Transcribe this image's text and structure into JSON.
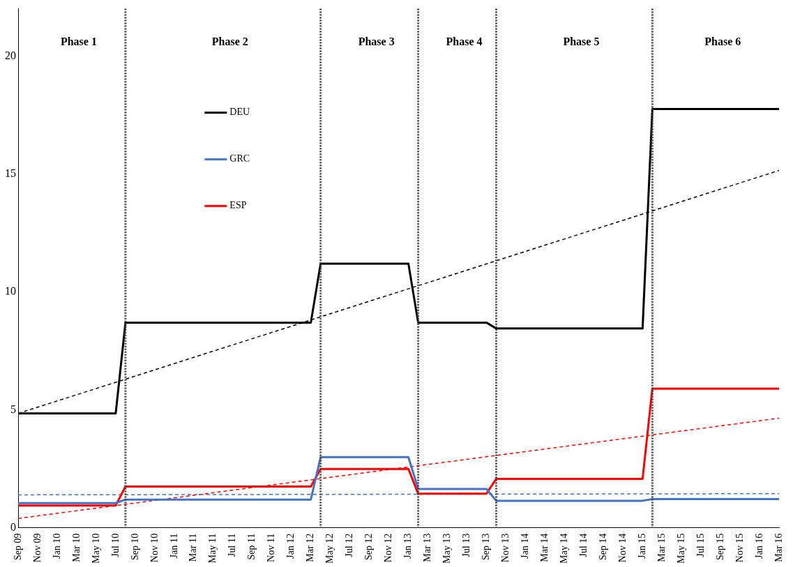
{
  "chart_data": {
    "type": "line",
    "legend": "top left",
    "marker": "none",
    "xlim": [
      "2009-09",
      "2016-03"
    ],
    "ylim": [
      0,
      22
    ],
    "yticks": [
      0,
      5,
      10,
      15,
      20
    ],
    "xticks": [
      {
        "value": "2009-09",
        "label": "Sep 09"
      },
      {
        "value": "2009-11",
        "label": "Nov 09"
      },
      {
        "value": "2010-01",
        "label": "Jan 10"
      },
      {
        "value": "2010-03",
        "label": "Mar 10"
      },
      {
        "value": "2010-05",
        "label": "May 10"
      },
      {
        "value": "2010-07",
        "label": "Jul 10"
      },
      {
        "value": "2010-09",
        "label": "Sep 10"
      },
      {
        "value": "2010-11",
        "label": "Nov 10"
      },
      {
        "value": "2011-01",
        "label": "Jan 11"
      },
      {
        "value": "2011-03",
        "label": "Mar 11"
      },
      {
        "value": "2011-05",
        "label": "May 11"
      },
      {
        "value": "2011-07",
        "label": "Jul 11"
      },
      {
        "value": "2011-09",
        "label": "Sep 11"
      },
      {
        "value": "2011-11",
        "label": "Nov 11"
      },
      {
        "value": "2012-01",
        "label": "Jan 12"
      },
      {
        "value": "2012-03",
        "label": "Mar 12"
      },
      {
        "value": "2012-05",
        "label": "May 12"
      },
      {
        "value": "2012-07",
        "label": "Jul 12"
      },
      {
        "value": "2012-09",
        "label": "Sep 12"
      },
      {
        "value": "2012-11",
        "label": "Nov 12"
      },
      {
        "value": "2013-01",
        "label": "Jan 13"
      },
      {
        "value": "2013-03",
        "label": "Mar 13"
      },
      {
        "value": "2013-05",
        "label": "May 13"
      },
      {
        "value": "2013-07",
        "label": "Jul 13"
      },
      {
        "value": "2013-09",
        "label": "Sep 13"
      },
      {
        "value": "2013-11",
        "label": "Nov 13"
      },
      {
        "value": "2014-01",
        "label": "Jan 14"
      },
      {
        "value": "2014-03",
        "label": "Mar 14"
      },
      {
        "value": "2014-05",
        "label": "May 14"
      },
      {
        "value": "2014-07",
        "label": "Jul 14"
      },
      {
        "value": "2014-09",
        "label": "Sep 14"
      },
      {
        "value": "2014-11",
        "label": "Nov 14"
      },
      {
        "value": "2015-01",
        "label": "Jan 15"
      },
      {
        "value": "2015-03",
        "label": "Mar 15"
      },
      {
        "value": "2015-05",
        "label": "May 15"
      },
      {
        "value": "2015-07",
        "label": "Jul 15"
      },
      {
        "value": "2015-09",
        "label": "Sep 15"
      },
      {
        "value": "2015-11",
        "label": "Nov 15"
      },
      {
        "value": "2016-01",
        "label": "Jan 16"
      },
      {
        "value": "2016-03",
        "label": "Mar 16"
      }
    ],
    "series": [
      {
        "name": "DEU",
        "color": "#000000",
        "line_style": "solid",
        "x": [
          "2009-09",
          "2010-07",
          "2010-08",
          "2012-03",
          "2012-04",
          "2013-01",
          "2013-02",
          "2013-09",
          "2013-10",
          "2015-01",
          "2015-02",
          "2016-03"
        ],
        "values": [
          4.85,
          4.85,
          8.7,
          8.7,
          11.2,
          11.2,
          8.7,
          8.7,
          8.45,
          8.45,
          17.75,
          17.75
        ]
      },
      {
        "name": "GRC",
        "color": "#4472c4",
        "line_style": "solid",
        "x": [
          "2009-09",
          "2010-07",
          "2010-08",
          "2012-03",
          "2012-04",
          "2013-01",
          "2013-02",
          "2013-09",
          "2013-10",
          "2015-01",
          "2015-02",
          "2016-03"
        ],
        "values": [
          1.05,
          1.05,
          1.2,
          1.2,
          3.0,
          3.0,
          1.65,
          1.65,
          1.15,
          1.15,
          1.22,
          1.22
        ]
      },
      {
        "name": "ESP",
        "color": "#ff0000",
        "line_style": "solid",
        "x": [
          "2009-09",
          "2010-07",
          "2010-08",
          "2012-03",
          "2012-04",
          "2013-01",
          "2013-02",
          "2013-09",
          "2013-10",
          "2015-01",
          "2015-02",
          "2016-03"
        ],
        "values": [
          0.95,
          0.95,
          1.75,
          1.75,
          2.5,
          2.5,
          1.45,
          1.45,
          2.08,
          2.08,
          5.9,
          5.9
        ]
      },
      {
        "color": "#000000",
        "line_style": "dashed",
        "x": [
          "2009-09",
          "2016-03"
        ],
        "values": [
          4.85,
          15.15
        ]
      },
      {
        "color": "#4472c4",
        "line_style": "dashed",
        "x": [
          "2009-09",
          "2016-03"
        ],
        "values": [
          1.4,
          1.45
        ]
      },
      {
        "color": "#ff0000",
        "line_style": "dashed",
        "x": [
          "2009-09",
          "2016-03"
        ],
        "values": [
          0.4,
          4.65
        ]
      }
    ],
    "ref_lines": [
      {
        "axis": "x",
        "value": "2010-08",
        "line_style": "dotted",
        "color": "#404040"
      },
      {
        "axis": "x",
        "value": "2012-04",
        "line_style": "dotted",
        "color": "#404040"
      },
      {
        "axis": "x",
        "value": "2013-02",
        "line_style": "dotted",
        "color": "#404040"
      },
      {
        "axis": "x",
        "value": "2013-10",
        "line_style": "dotted",
        "color": "#404040"
      },
      {
        "axis": "x",
        "value": "2015-02",
        "line_style": "dotted",
        "color": "#404040"
      }
    ],
    "annotations": [
      "Phase 1",
      "Phase 2",
      "Phase 3",
      "Phase 4",
      "Phase 5",
      "Phase 6"
    ]
  }
}
